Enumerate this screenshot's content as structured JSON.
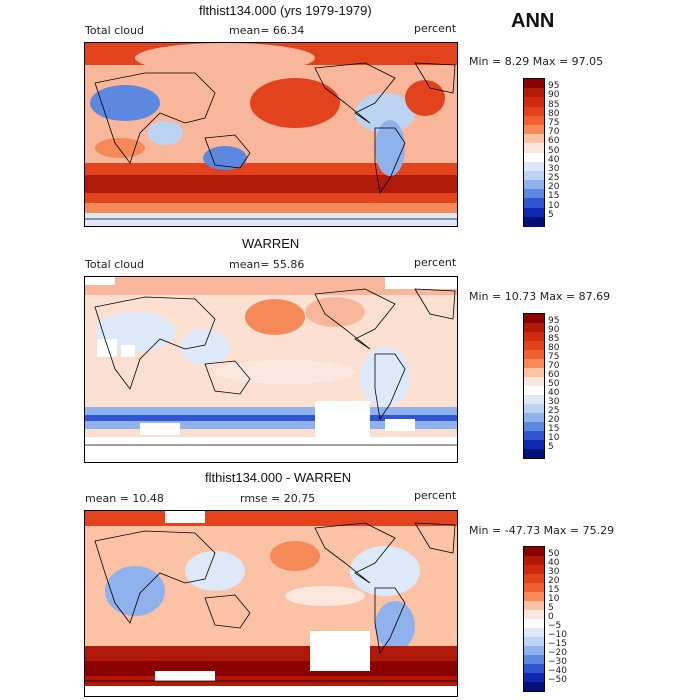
{
  "page": {
    "season_label": "ANN"
  },
  "panels": [
    {
      "title": "flthist134.000 (yrs 1979-1979)",
      "variable": "Total cloud",
      "mean_label": "mean=  66.34",
      "unit": "percent",
      "minmax": "Min =   8.29 Max =  97.05",
      "colorbar": {
        "ticks": [
          "95",
          "90",
          "85",
          "80",
          "75",
          "70",
          "60",
          "50",
          "40",
          "30",
          "25",
          "20",
          "15",
          "10",
          "5"
        ],
        "colors": [
          "#8b0000",
          "#b01808",
          "#cf2a10",
          "#e2421c",
          "#ef5f2f",
          "#f58a58",
          "#fbc2a6",
          "#fbe7dd",
          "#ffffff",
          "#dde9f8",
          "#bcd3f2",
          "#8fb2ec",
          "#5d88e0",
          "#2f55d2",
          "#1028b0",
          "#00107a"
        ]
      },
      "chart_data": {
        "type": "heatmap",
        "title": "flthist134.000 (yrs 1979-1979)",
        "variable": "Total cloud",
        "mean": 66.34,
        "min": 8.29,
        "max": 97.05,
        "unit": "percent",
        "levels": [
          5,
          10,
          15,
          20,
          25,
          30,
          40,
          50,
          60,
          70,
          75,
          80,
          85,
          90,
          95
        ]
      }
    },
    {
      "title": "WARREN",
      "variable": "Total cloud",
      "mean_label": "mean=  55.86",
      "unit": "percent",
      "minmax": "Min =  10.73 Max =  87.69",
      "colorbar": {
        "ticks": [
          "95",
          "90",
          "85",
          "80",
          "75",
          "70",
          "60",
          "50",
          "40",
          "30",
          "25",
          "20",
          "15",
          "10",
          "5"
        ],
        "colors": [
          "#8b0000",
          "#b01808",
          "#cf2a10",
          "#e2421c",
          "#ef5f2f",
          "#f58a58",
          "#fbc2a6",
          "#fbe7dd",
          "#ffffff",
          "#dde9f8",
          "#bcd3f2",
          "#8fb2ec",
          "#5d88e0",
          "#2f55d2",
          "#1028b0",
          "#00107a"
        ]
      },
      "chart_data": {
        "type": "heatmap",
        "title": "WARREN",
        "variable": "Total cloud",
        "mean": 55.86,
        "min": 10.73,
        "max": 87.69,
        "unit": "percent",
        "levels": [
          5,
          10,
          15,
          20,
          25,
          30,
          40,
          50,
          60,
          70,
          75,
          80,
          85,
          90,
          95
        ]
      }
    },
    {
      "title": "flthist134.000 - WARREN",
      "mean_label": "mean =  10.48",
      "rmse_label": "rmse =  20.75",
      "unit": "percent",
      "minmax": "Min = -47.73 Max =  75.29",
      "colorbar": {
        "ticks": [
          "50",
          "40",
          "30",
          "20",
          "15",
          "10",
          "5",
          "0",
          "−5",
          "−10",
          "−15",
          "−20",
          "−30",
          "−40",
          "−50"
        ],
        "colors": [
          "#8b0000",
          "#b01808",
          "#cf2a10",
          "#e2421c",
          "#ef5f2f",
          "#f58a58",
          "#fbc2a6",
          "#fbe7dd",
          "#ffffff",
          "#dde9f8",
          "#bcd3f2",
          "#8fb2ec",
          "#5d88e0",
          "#2f55d2",
          "#1028b0",
          "#00107a"
        ]
      },
      "chart_data": {
        "type": "heatmap",
        "title": "flthist134.000 - WARREN",
        "mean": 10.48,
        "rmse": 20.75,
        "min": -47.73,
        "max": 75.29,
        "unit": "percent",
        "levels": [
          -50,
          -40,
          -30,
          -20,
          -15,
          -10,
          -5,
          0,
          5,
          10,
          15,
          20,
          30,
          40,
          50
        ]
      }
    }
  ]
}
